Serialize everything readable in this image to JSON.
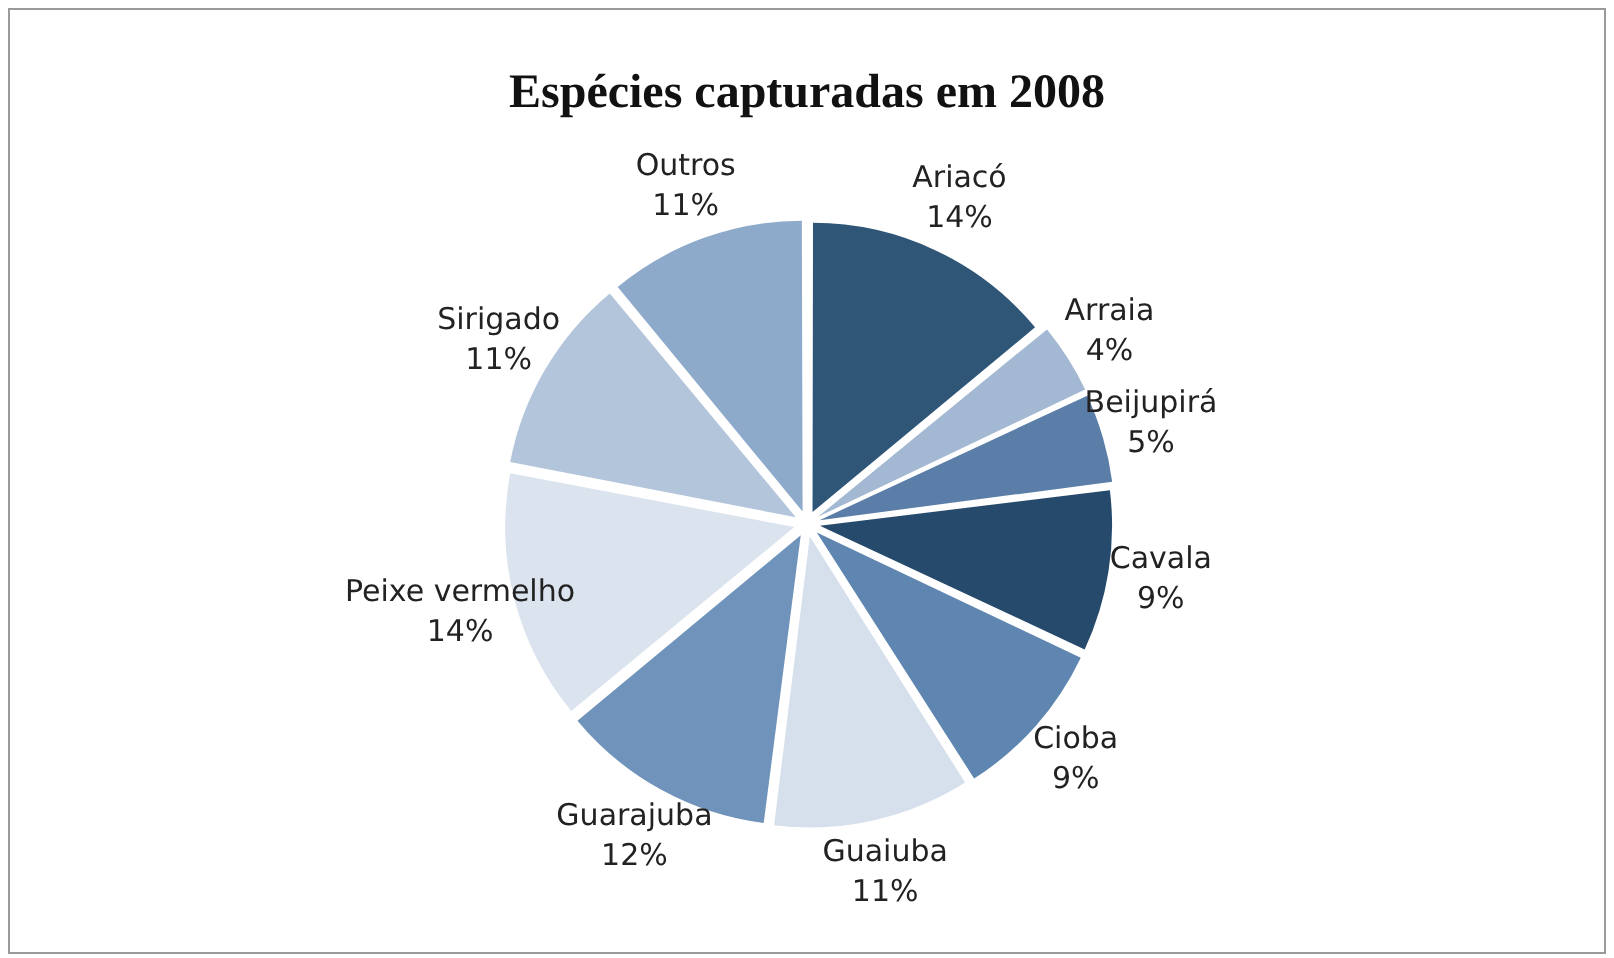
{
  "chart_data": {
    "type": "pie",
    "title": "Espécies capturadas em 2008",
    "categories": [
      "Ariacó",
      "Arraia",
      "Beijupirá",
      "Cavala",
      "Cioba",
      "Guaiuba",
      "Guarajuba",
      "Peixe vermelho",
      "Sirigado",
      "Outros"
    ],
    "values": [
      14,
      4,
      5,
      9,
      9,
      11,
      12,
      14,
      11,
      11
    ],
    "value_labels": [
      "14%",
      "4%",
      "5%",
      "9%",
      "9%",
      "11%",
      "12%",
      "14%",
      "11%",
      "11%"
    ],
    "colors": [
      "#2f5577",
      "#a3b8d2",
      "#5a7ea8",
      "#264a6c",
      "#5f86b0",
      "#d6e0ec",
      "#6f93ba",
      "#dae3ee",
      "#b3c5db",
      "#8eaacb"
    ],
    "legend": false
  }
}
